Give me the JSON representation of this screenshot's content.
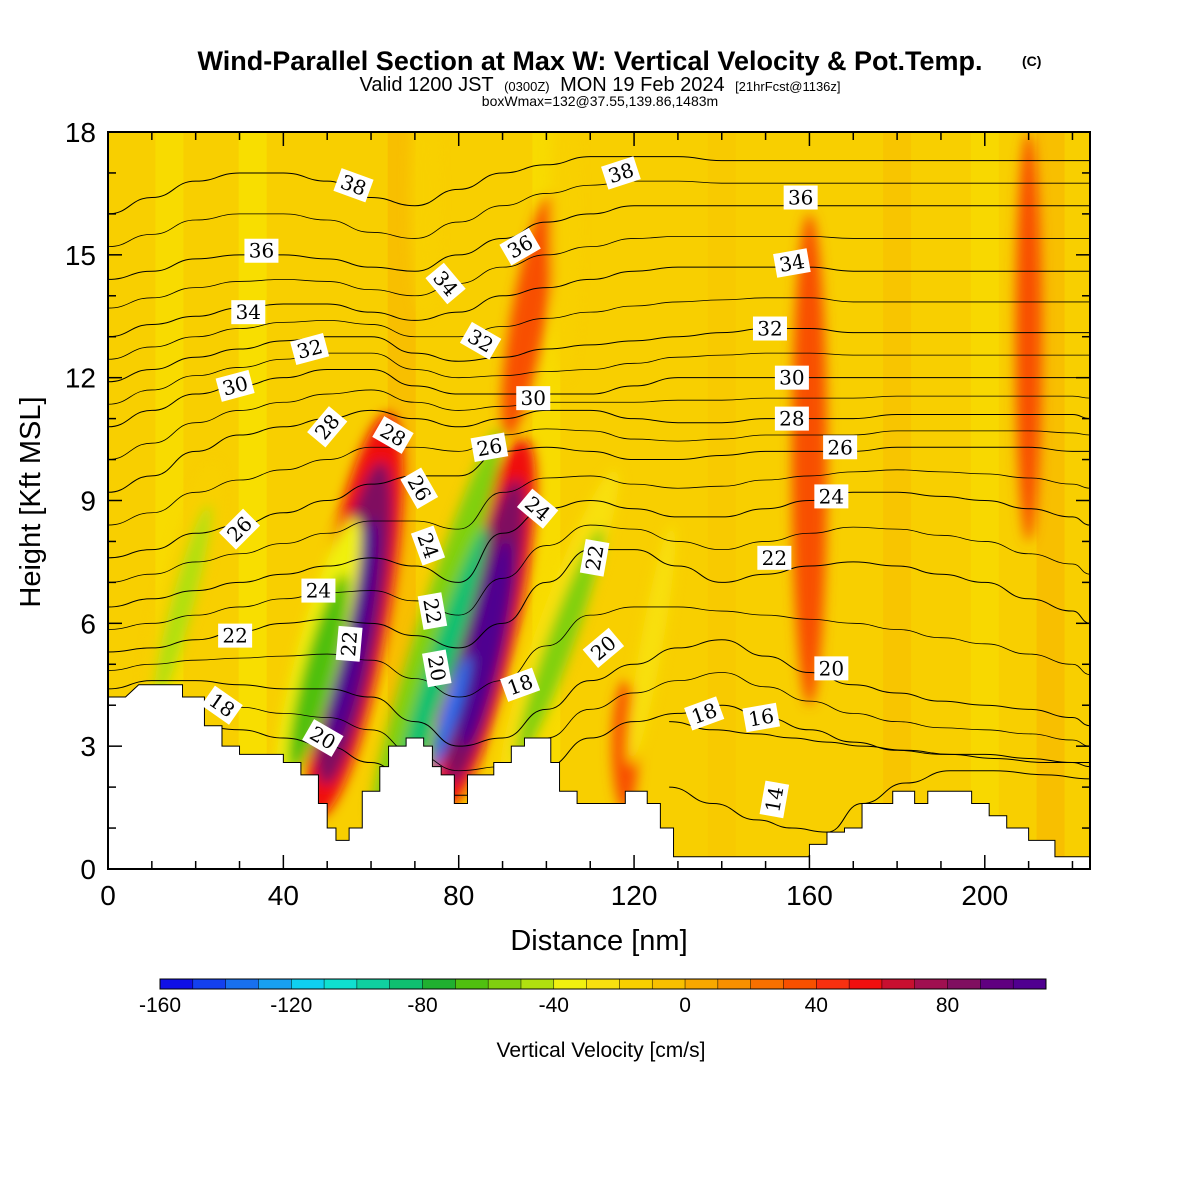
{
  "header": {
    "title": "Wind-Parallel Section at Max W: Vertical Velocity & Pot.Temp.",
    "title_mark": "(C)",
    "valid_prefix": "Valid 1200 JST",
    "valid_utc": "(0300Z)",
    "valid_date": "MON 19 Feb 2024",
    "fcst_info": "[21hrFcst@1136z]",
    "box_info": "boxWmax=132@37.55,139.86,1483m"
  },
  "chart_data": {
    "type": "heatmap",
    "xlabel": "Distance [nm]",
    "ylabel": "Height [Kft MSL]",
    "xlim": [
      0,
      224
    ],
    "ylim": [
      0,
      18
    ],
    "x_ticks": [
      0,
      40,
      80,
      120,
      160,
      200
    ],
    "y_ticks": [
      0,
      3,
      6,
      9,
      12,
      15,
      18
    ],
    "colorbar": {
      "title": "Vertical Velocity [cm/s]",
      "range": [
        -160,
        110
      ],
      "step": 10,
      "tick_values": [
        -160,
        -120,
        -80,
        -40,
        0,
        40,
        80
      ],
      "colors": [
        "#1010e6",
        "#1440ee",
        "#1870ee",
        "#18a0f0",
        "#10d0f0",
        "#10e0d0",
        "#10d0a0",
        "#10c070",
        "#20b030",
        "#50c010",
        "#80d010",
        "#b0e010",
        "#f0f010",
        "#f8e010",
        "#f8d000",
        "#f8c000",
        "#f8a800",
        "#f89000",
        "#f87000",
        "#f85000",
        "#f83010",
        "#f01010",
        "#c81030",
        "#a01050",
        "#801060",
        "#600080",
        "#500090"
      ]
    },
    "terrain_kft": [
      [
        0,
        4.2
      ],
      [
        4,
        4.2
      ],
      [
        7,
        4.5
      ],
      [
        10,
        4.5
      ],
      [
        17,
        4.5
      ],
      [
        17,
        4.2
      ],
      [
        22,
        4.2
      ],
      [
        22,
        3.5
      ],
      [
        26,
        3.5
      ],
      [
        26,
        3.0
      ],
      [
        30,
        3.0
      ],
      [
        30,
        2.8
      ],
      [
        40,
        2.8
      ],
      [
        40,
        2.6
      ],
      [
        44,
        2.6
      ],
      [
        44,
        2.3
      ],
      [
        48,
        2.3
      ],
      [
        48,
        1.6
      ],
      [
        50,
        1.6
      ],
      [
        50,
        1.0
      ],
      [
        52,
        1.0
      ],
      [
        52,
        0.7
      ],
      [
        55,
        0.7
      ],
      [
        55,
        1.0
      ],
      [
        58,
        1.0
      ],
      [
        58,
        1.9
      ],
      [
        62,
        1.9
      ],
      [
        62,
        2.5
      ],
      [
        64,
        2.5
      ],
      [
        64,
        3.0
      ],
      [
        68,
        3.0
      ],
      [
        68,
        3.2
      ],
      [
        72,
        3.2
      ],
      [
        72,
        3.0
      ],
      [
        74,
        3.0
      ],
      [
        74,
        2.5
      ],
      [
        76,
        2.5
      ],
      [
        76,
        2.3
      ],
      [
        79,
        2.3
      ],
      [
        79,
        1.6
      ],
      [
        82,
        1.6
      ],
      [
        82,
        2.3
      ],
      [
        88,
        2.3
      ],
      [
        88,
        2.6
      ],
      [
        92,
        2.6
      ],
      [
        92,
        3.0
      ],
      [
        95,
        3.0
      ],
      [
        95,
        3.2
      ],
      [
        101,
        3.2
      ],
      [
        101,
        2.6
      ],
      [
        103,
        2.6
      ],
      [
        103,
        1.9
      ],
      [
        107,
        1.9
      ],
      [
        107,
        1.6
      ],
      [
        118,
        1.6
      ],
      [
        118,
        1.9
      ],
      [
        123,
        1.9
      ],
      [
        123,
        1.6
      ],
      [
        126,
        1.6
      ],
      [
        126,
        1.0
      ],
      [
        129,
        1.0
      ],
      [
        129,
        0.3
      ],
      [
        160,
        0.3
      ],
      [
        160,
        0.6
      ],
      [
        164,
        0.6
      ],
      [
        164,
        0.9
      ],
      [
        168,
        0.9
      ],
      [
        168,
        1.0
      ],
      [
        172,
        1.0
      ],
      [
        172,
        1.6
      ],
      [
        179,
        1.6
      ],
      [
        179,
        1.9
      ],
      [
        184,
        1.9
      ],
      [
        184,
        1.6
      ],
      [
        187,
        1.6
      ],
      [
        187,
        1.9
      ],
      [
        197,
        1.9
      ],
      [
        197,
        1.6
      ],
      [
        201,
        1.6
      ],
      [
        201,
        1.3
      ],
      [
        205,
        1.3
      ],
      [
        205,
        1.0
      ],
      [
        210,
        1.0
      ],
      [
        210,
        0.7
      ],
      [
        216,
        0.7
      ],
      [
        216,
        0.3
      ],
      [
        224,
        0.3
      ]
    ],
    "updraft_bands": [
      {
        "value": 110,
        "x": 56,
        "y": 5.8,
        "w": 3.5,
        "h": 2.8,
        "tilt": 10
      },
      {
        "value": 80,
        "x": 56,
        "y": 6.0,
        "w": 6,
        "h": 4.0,
        "tilt": 10
      },
      {
        "value": 50,
        "x": 56,
        "y": 6.2,
        "w": 8,
        "h": 5.0,
        "tilt": 10
      },
      {
        "value": 110,
        "x": 86,
        "y": 5.5,
        "w": 3.5,
        "h": 2.6,
        "tilt": 12
      },
      {
        "value": 80,
        "x": 86,
        "y": 5.8,
        "w": 5.5,
        "h": 3.8,
        "tilt": 12
      },
      {
        "value": 50,
        "x": 86,
        "y": 6.0,
        "w": 7.5,
        "h": 4.6,
        "tilt": 12
      },
      {
        "value": 30,
        "x": 118,
        "y": 3.0,
        "w": 3,
        "h": 1.6,
        "tilt": 0
      },
      {
        "value": 30,
        "x": 96,
        "y": 13.5,
        "w": 4,
        "h": 3.0,
        "tilt": 10
      },
      {
        "value": 30,
        "x": 160,
        "y": 10,
        "w": 4,
        "h": 6,
        "tilt": 0
      },
      {
        "value": 30,
        "x": 210,
        "y": 13,
        "w": 3,
        "h": 5,
        "tilt": 0
      }
    ],
    "downdraft_bands": [
      {
        "value": -140,
        "x": 78,
        "y": 3.8,
        "w": 1.8,
        "h": 1.5,
        "tilt": 18
      },
      {
        "value": -90,
        "x": 76,
        "y": 5.0,
        "w": 3,
        "h": 3.5,
        "tilt": 18
      },
      {
        "value": -60,
        "x": 75,
        "y": 6.0,
        "w": 4,
        "h": 5.0,
        "tilt": 18
      },
      {
        "value": -70,
        "x": 48,
        "y": 4.8,
        "w": 3.5,
        "h": 2.5,
        "tilt": 15
      },
      {
        "value": -40,
        "x": 48,
        "y": 5.2,
        "w": 5,
        "h": 3.5,
        "tilt": 15
      },
      {
        "value": -60,
        "x": 103,
        "y": 5.5,
        "w": 3,
        "h": 3,
        "tilt": 20
      },
      {
        "value": -30,
        "x": 103,
        "y": 6.0,
        "w": 4.5,
        "h": 4,
        "tilt": 20
      },
      {
        "value": -50,
        "x": 17,
        "y": 6.5,
        "w": 2.5,
        "h": 2.5,
        "tilt": 15
      },
      {
        "value": -20,
        "x": 17,
        "y": 7.0,
        "w": 4,
        "h": 3,
        "tilt": 15
      },
      {
        "value": -30,
        "x": 124,
        "y": 5.5,
        "w": 2.5,
        "h": 3,
        "tilt": 10
      },
      {
        "value": -20,
        "x": 72,
        "y": 16.5,
        "w": 3,
        "h": 3,
        "tilt": 0
      },
      {
        "value": -20,
        "x": 104,
        "y": 16,
        "w": 3,
        "h": 4,
        "tilt": 0
      }
    ],
    "theta_isentropes_kft": [
      {
        "value": 18,
        "y": [
          3.8,
          3.6,
          3.5,
          3.4,
          3.2,
          3.0,
          2.6,
          2.0,
          1.8,
          1.8,
          2.5,
          3.2,
          3.6,
          3.8,
          4.0,
          3.7,
          3.4,
          3.1,
          2.9,
          2.8,
          2.8,
          2.7,
          2.6,
          2.5
        ]
      },
      {
        "value": 20,
        "y": [
          4.4,
          4.6,
          4.6,
          4.5,
          4.4,
          4.4,
          4.2,
          3.6,
          3.0,
          3.2,
          3.9,
          4.6,
          5.0,
          5.4,
          5.6,
          5.2,
          4.8,
          4.5,
          4.3,
          4.1,
          4.0,
          3.9,
          3.7,
          3.5
        ]
      },
      {
        "value": 22,
        "y": [
          5.3,
          5.4,
          5.6,
          5.8,
          6.0,
          6.1,
          6.0,
          5.7,
          5.4,
          6.0,
          7.0,
          7.8,
          7.8,
          7.4,
          7.0,
          7.2,
          7.4,
          7.5,
          7.4,
          7.2,
          7.0,
          6.6,
          6.3,
          6.0
        ]
      },
      {
        "value": 24,
        "y": [
          6.4,
          6.6,
          6.8,
          7.0,
          7.2,
          7.4,
          7.6,
          7.4,
          7.0,
          8.2,
          8.8,
          9.0,
          8.8,
          8.6,
          8.6,
          8.8,
          9.0,
          9.2,
          9.2,
          9.1,
          9.0,
          8.8,
          8.6,
          8.4
        ]
      },
      {
        "value": 26,
        "y": [
          7.6,
          7.8,
          8.2,
          8.4,
          8.7,
          9.0,
          9.4,
          9.6,
          9.6,
          10.2,
          10.3,
          10.2,
          10.0,
          10.0,
          10.1,
          10.2,
          10.2,
          10.2,
          10.3,
          10.3,
          10.3,
          10.3,
          10.2,
          10.2
        ]
      },
      {
        "value": 28,
        "y": [
          9.2,
          9.6,
          10.2,
          10.6,
          10.8,
          11.0,
          11.2,
          11.0,
          10.8,
          11.0,
          11.2,
          11.2,
          11.0,
          10.9,
          10.9,
          11.0,
          11.0,
          11.0,
          11.1,
          11.1,
          11.1,
          11.1,
          11.1,
          11.0
        ]
      },
      {
        "value": 30,
        "y": [
          10.8,
          11.2,
          11.6,
          11.8,
          12.0,
          12.2,
          12.2,
          11.8,
          11.6,
          11.6,
          11.6,
          11.6,
          11.8,
          12.0,
          12.0,
          12.0,
          12.0,
          12.0,
          12.0,
          12.0,
          12.0,
          12.0,
          12.0,
          12.0
        ]
      },
      {
        "value": 32,
        "y": [
          11.9,
          12.2,
          12.5,
          12.7,
          12.9,
          13.0,
          13.0,
          12.6,
          12.4,
          12.5,
          12.7,
          12.8,
          12.9,
          13.0,
          13.1,
          13.2,
          13.2,
          13.1,
          13.1,
          13.1,
          13.1,
          13.1,
          13.1,
          13.1
        ]
      },
      {
        "value": 34,
        "y": [
          13.0,
          13.3,
          13.5,
          13.7,
          13.8,
          13.8,
          13.6,
          13.4,
          13.6,
          14.0,
          14.2,
          14.4,
          14.6,
          14.7,
          14.7,
          14.7,
          14.7,
          14.6,
          14.6,
          14.6,
          14.6,
          14.6,
          14.6,
          14.6
        ]
      },
      {
        "value": 36,
        "y": [
          14.4,
          14.6,
          14.9,
          15.0,
          15.0,
          14.9,
          14.7,
          14.6,
          15.0,
          15.4,
          15.8,
          16.0,
          16.2,
          16.2,
          16.2,
          16.2,
          16.2,
          16.2,
          16.2,
          16.2,
          16.2,
          16.2,
          16.2,
          16.2
        ]
      },
      {
        "value": 38,
        "y": [
          16.0,
          16.4,
          16.8,
          17.0,
          17.0,
          16.8,
          16.4,
          16.2,
          16.6,
          17.0,
          17.2,
          17.4,
          17.4,
          17.4,
          17.3,
          17.3,
          17.3,
          17.3,
          17.3,
          17.3,
          17.3,
          17.3,
          17.3,
          17.3
        ]
      }
    ],
    "isentrope_x_nm": [
      0,
      10,
      20,
      30,
      40,
      50,
      60,
      70,
      80,
      90,
      100,
      110,
      120,
      130,
      140,
      150,
      160,
      170,
      180,
      190,
      200,
      210,
      220,
      224
    ],
    "low_level_isentropes": [
      {
        "value": 16,
        "y": [
          3.6,
          3.4,
          3.3,
          3.2,
          3.1,
          3.0,
          2.9,
          2.8,
          2.7,
          2.6,
          2.6
        ]
      },
      {
        "value": 14,
        "y": [
          2.0,
          1.6,
          1.2,
          1.0,
          0.9,
          1.6,
          2.1,
          2.4,
          2.4,
          2.3,
          2.2
        ]
      }
    ],
    "low_level_x_nm": [
      128,
      138,
      148,
      156,
      164,
      172,
      182,
      192,
      202,
      214,
      224
    ],
    "contour_labels": [
      {
        "text": "38",
        "x": 56,
        "y": 16.7,
        "angle": 20
      },
      {
        "text": "38",
        "x": 117,
        "y": 17.0,
        "angle": -18
      },
      {
        "text": "36",
        "x": 158,
        "y": 16.4,
        "angle": 0
      },
      {
        "text": "36",
        "x": 35,
        "y": 15.1,
        "angle": 0
      },
      {
        "text": "36",
        "x": 94,
        "y": 15.2,
        "angle": -30
      },
      {
        "text": "34",
        "x": 77,
        "y": 14.3,
        "angle": 50
      },
      {
        "text": "34",
        "x": 156,
        "y": 14.8,
        "angle": -10
      },
      {
        "text": "34",
        "x": 32,
        "y": 13.6,
        "angle": 0
      },
      {
        "text": "32",
        "x": 151,
        "y": 13.2,
        "angle": 0
      },
      {
        "text": "32",
        "x": 46,
        "y": 12.7,
        "angle": -15
      },
      {
        "text": "32",
        "x": 85,
        "y": 12.9,
        "angle": 30
      },
      {
        "text": "30",
        "x": 29,
        "y": 11.8,
        "angle": -15
      },
      {
        "text": "30",
        "x": 97,
        "y": 11.5,
        "angle": 0
      },
      {
        "text": "30",
        "x": 156,
        "y": 12.0,
        "angle": 0
      },
      {
        "text": "28",
        "x": 50,
        "y": 10.8,
        "angle": -50
      },
      {
        "text": "28",
        "x": 65,
        "y": 10.6,
        "angle": 30
      },
      {
        "text": "28",
        "x": 156,
        "y": 11.0,
        "angle": 0
      },
      {
        "text": "26",
        "x": 87,
        "y": 10.3,
        "angle": -10
      },
      {
        "text": "26",
        "x": 167,
        "y": 10.3,
        "angle": 0
      },
      {
        "text": "26",
        "x": 71,
        "y": 9.3,
        "angle": 60
      },
      {
        "text": "26",
        "x": 30,
        "y": 8.3,
        "angle": -45
      },
      {
        "text": "24",
        "x": 98,
        "y": 8.8,
        "angle": 40
      },
      {
        "text": "24",
        "x": 165,
        "y": 9.1,
        "angle": 0
      },
      {
        "text": "24",
        "x": 73,
        "y": 7.9,
        "angle": 70
      },
      {
        "text": "24",
        "x": 48,
        "y": 6.8,
        "angle": 0
      },
      {
        "text": "22",
        "x": 111,
        "y": 7.6,
        "angle": -80
      },
      {
        "text": "22",
        "x": 152,
        "y": 7.6,
        "angle": 0
      },
      {
        "text": "22",
        "x": 74,
        "y": 6.3,
        "angle": 80
      },
      {
        "text": "22",
        "x": 29,
        "y": 5.7,
        "angle": 0
      },
      {
        "text": "22",
        "x": 55,
        "y": 5.5,
        "angle": -85
      },
      {
        "text": "20",
        "x": 113,
        "y": 5.4,
        "angle": -40
      },
      {
        "text": "20",
        "x": 165,
        "y": 4.9,
        "angle": 0
      },
      {
        "text": "20",
        "x": 75,
        "y": 4.9,
        "angle": 80
      },
      {
        "text": "20",
        "x": 49,
        "y": 3.2,
        "angle": 30
      },
      {
        "text": "18",
        "x": 94,
        "y": 4.5,
        "angle": -20
      },
      {
        "text": "18",
        "x": 136,
        "y": 3.8,
        "angle": -20
      },
      {
        "text": "18",
        "x": 26,
        "y": 4.0,
        "angle": 35
      },
      {
        "text": "16",
        "x": 149,
        "y": 3.7,
        "angle": -10
      },
      {
        "text": "14",
        "x": 152,
        "y": 1.7,
        "angle": -80
      }
    ]
  }
}
